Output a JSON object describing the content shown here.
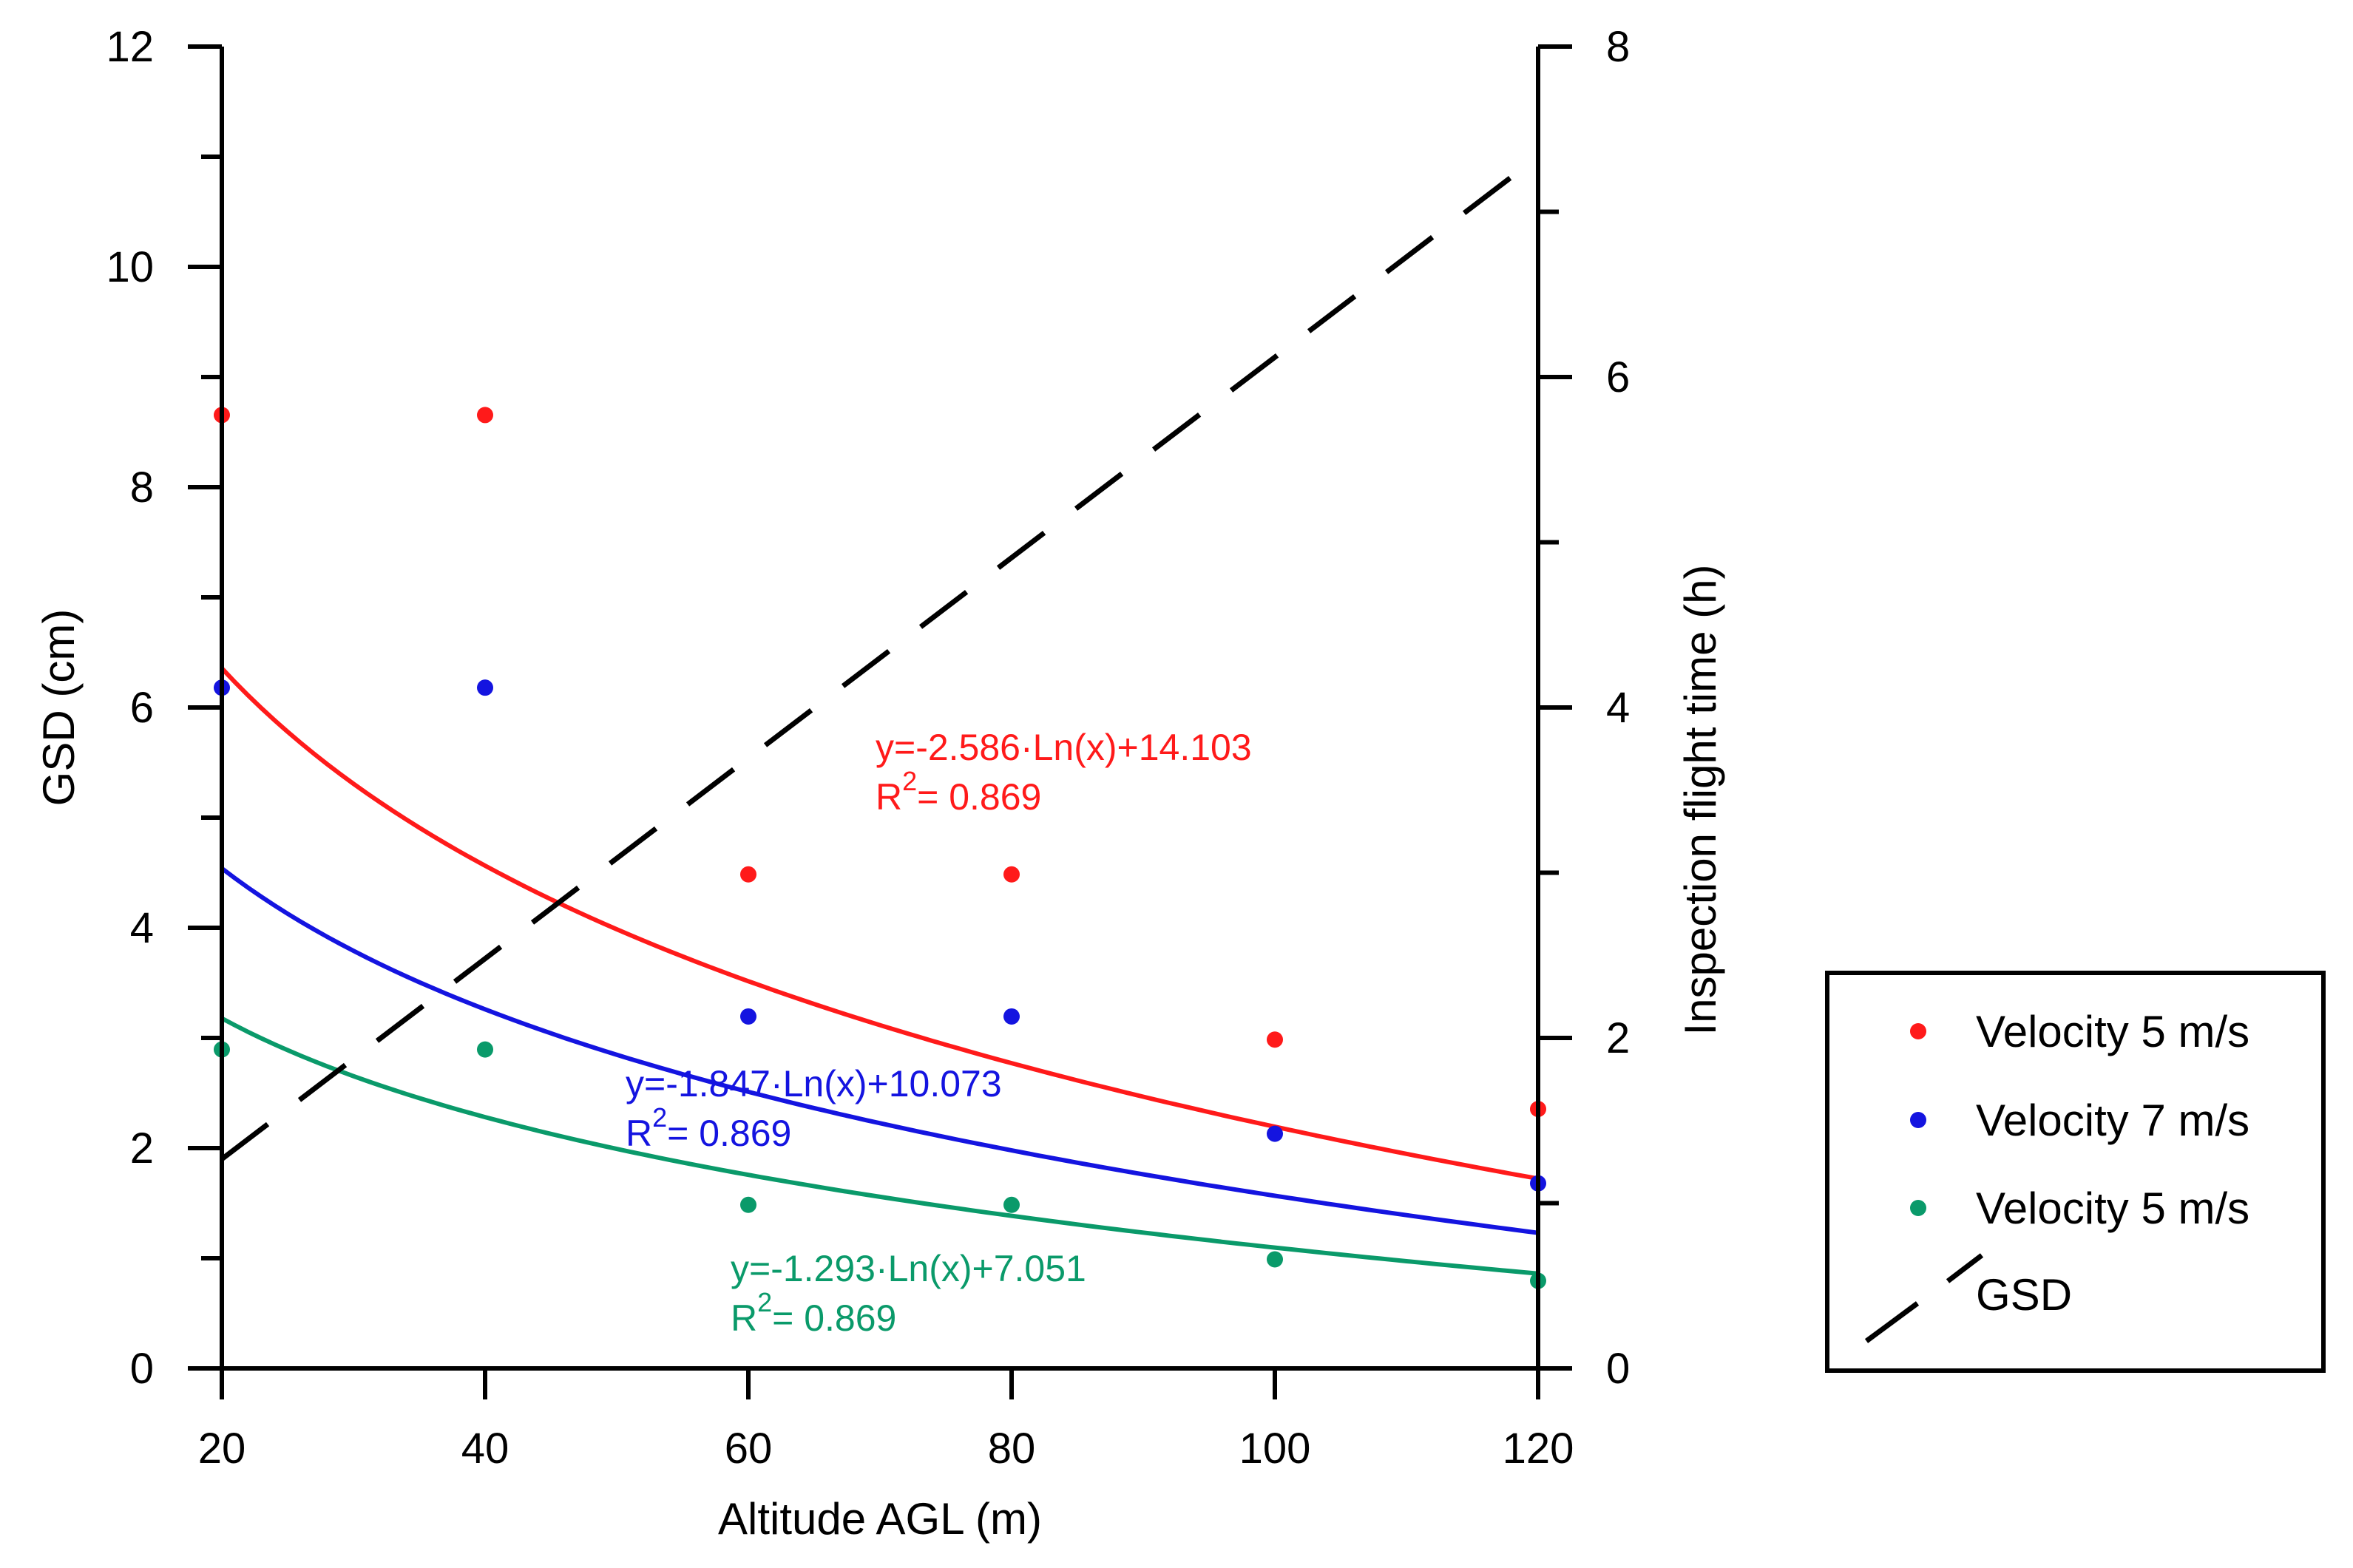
{
  "chart_data": {
    "type": "scatter",
    "title": "",
    "xlabel": "Altitude AGL (m)",
    "ylabel": "GSD (cm)",
    "y2label": "Inspection flight time (h)",
    "xlim": [
      20,
      120
    ],
    "ylim": [
      0,
      12
    ],
    "y2lim": [
      0,
      8
    ],
    "xticks": [
      20,
      40,
      60,
      80,
      100,
      120
    ],
    "xtick_labels": [
      "20",
      "40",
      "60",
      "80",
      "100",
      "120"
    ],
    "yticks_major": [
      0,
      2,
      4,
      6,
      8,
      10,
      12
    ],
    "ytick_labels": [
      "0",
      "2",
      "4",
      "6",
      "8",
      "10",
      "12"
    ],
    "yticks_minor": [
      1,
      3,
      5,
      7,
      9,
      11
    ],
    "y2ticks_major": [
      0,
      2,
      4,
      6,
      8
    ],
    "y2tick_labels": [
      "0",
      "2",
      "4",
      "6",
      "8"
    ],
    "y2ticks_minor": [
      1,
      3,
      5,
      7
    ],
    "grid": false,
    "legend_position": "right",
    "series": [
      {
        "name": "Velocity 5 m/s",
        "color": "#ff1a1a",
        "axis": "right",
        "x": [
          20,
          40,
          60,
          80,
          100,
          120
        ],
        "y": [
          5.77,
          5.77,
          2.99,
          2.99,
          1.99,
          1.57
        ],
        "fit": {
          "a": -2.586,
          "b": 14.103,
          "axis": "left"
        },
        "equation": "y=-2.586·Ln(x)+14.103",
        "r2_prefix": "R",
        "r2_sup": "2",
        "r2_value": "= 0.869"
      },
      {
        "name": "Velocity 7 m/s",
        "color": "#1414e0",
        "axis": "right",
        "x": [
          20,
          40,
          60,
          80,
          100,
          120
        ],
        "y": [
          4.12,
          4.12,
          2.13,
          2.13,
          1.42,
          1.12
        ],
        "fit": {
          "a": -1.847,
          "b": 10.073,
          "axis": "left"
        },
        "equation": "y=-1.847·Ln(x)+10.073",
        "r2_prefix": "R",
        "r2_sup": "2",
        "r2_value": "= 0.869"
      },
      {
        "name": "Velocity 5 m/s",
        "color": "#0a9a6a",
        "axis": "right",
        "x": [
          20,
          40,
          60,
          80,
          100,
          120
        ],
        "y": [
          1.93,
          1.93,
          0.99,
          0.99,
          0.66,
          0.53
        ],
        "fit": {
          "a": -1.293,
          "b": 7.051,
          "axis": "left"
        },
        "equation": "y=-1.293·Ln(x)+7.051",
        "r2_prefix": "R",
        "r2_sup": "2",
        "r2_value": "= 0.869"
      },
      {
        "name": "GSD",
        "color": "#000000",
        "axis": "left",
        "style": "dashed",
        "x": [
          20,
          120
        ],
        "y": [
          1.9,
          11.0
        ]
      }
    ]
  }
}
